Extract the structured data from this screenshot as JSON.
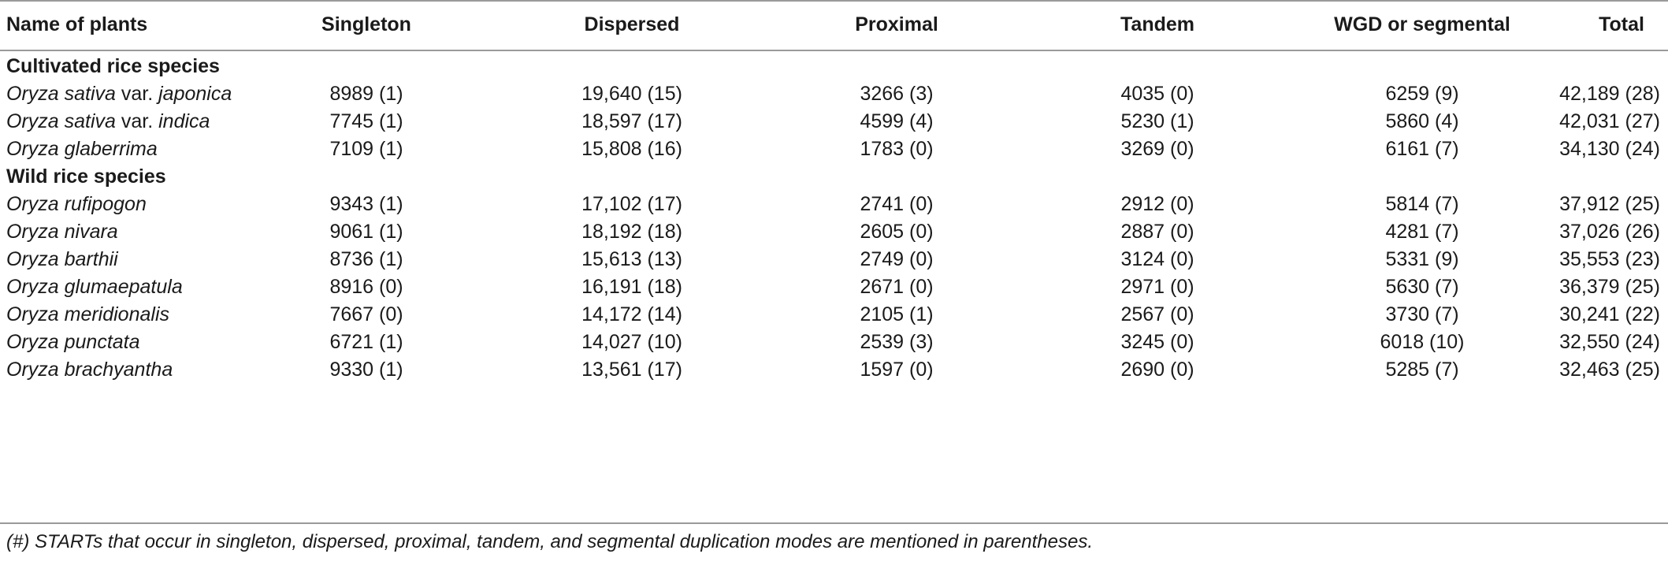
{
  "columns": [
    "Name of plants",
    "Singleton",
    "Dispersed",
    "Proximal",
    "Tandem",
    "WGD or segmental",
    "Total"
  ],
  "sections": [
    {
      "title": "Cultivated rice species",
      "rows": [
        {
          "name_a": "Oryza sativa",
          "name_b": " var. ",
          "name_c": "japonica",
          "values": [
            "8989 (1)",
            "19,640 (15)",
            "3266 (3)",
            "4035 (0)",
            "6259 (9)",
            "42,189 (28)"
          ]
        },
        {
          "name_a": "Oryza sativa",
          "name_b": " var. ",
          "name_c": "indica",
          "values": [
            "7745 (1)",
            "18,597 (17)",
            "4599 (4)",
            "5230 (1)",
            "5860 (4)",
            "42,031 (27)"
          ]
        },
        {
          "name_a": "Oryza glaberrima",
          "name_b": "",
          "name_c": "",
          "values": [
            "7109 (1)",
            "15,808 (16)",
            "1783 (0)",
            "3269 (0)",
            "6161 (7)",
            "34,130 (24)"
          ]
        }
      ]
    },
    {
      "title": "Wild rice species",
      "rows": [
        {
          "name_a": "Oryza rufipogon",
          "name_b": "",
          "name_c": "",
          "values": [
            "9343 (1)",
            "17,102 (17)",
            "2741 (0)",
            "2912 (0)",
            "5814 (7)",
            "37,912 (25)"
          ]
        },
        {
          "name_a": "Oryza nivara",
          "name_b": "",
          "name_c": "",
          "values": [
            "9061 (1)",
            "18,192 (18)",
            "2605 (0)",
            "2887 (0)",
            "4281 (7)",
            "37,026 (26)"
          ]
        },
        {
          "name_a": "Oryza barthii",
          "name_b": "",
          "name_c": "",
          "values": [
            "8736 (1)",
            "15,613 (13)",
            "2749 (0)",
            "3124 (0)",
            "5331 (9)",
            "35,553 (23)"
          ]
        },
        {
          "name_a": "Oryza glumaepatula",
          "name_b": "",
          "name_c": "",
          "values": [
            "8916 (0)",
            "16,191 (18)",
            "2671 (0)",
            "2971 (0)",
            "5630 (7)",
            "36,379 (25)"
          ]
        },
        {
          "name_a": "Oryza meridionalis",
          "name_b": "",
          "name_c": "",
          "values": [
            "7667 (0)",
            "14,172 (14)",
            "2105 (1)",
            "2567 (0)",
            "3730 (7)",
            "30,241 (22)"
          ]
        },
        {
          "name_a": "Oryza punctata",
          "name_b": "",
          "name_c": "",
          "values": [
            "6721 (1)",
            "14,027 (10)",
            "2539 (3)",
            "3245 (0)",
            "6018 (10)",
            "32,550 (24)"
          ]
        },
        {
          "name_a": "Oryza brachyantha",
          "name_b": "",
          "name_c": "",
          "values": [
            "9330 (1)",
            "13,561 (17)",
            "1597 (0)",
            "2690 (0)",
            "5285 (7)",
            "32,463 (25)"
          ]
        }
      ]
    }
  ],
  "footnote": "(#) STARTs that occur in singleton, dispersed, proximal, tandem, and segmental duplication modes are mentioned in parentheses."
}
